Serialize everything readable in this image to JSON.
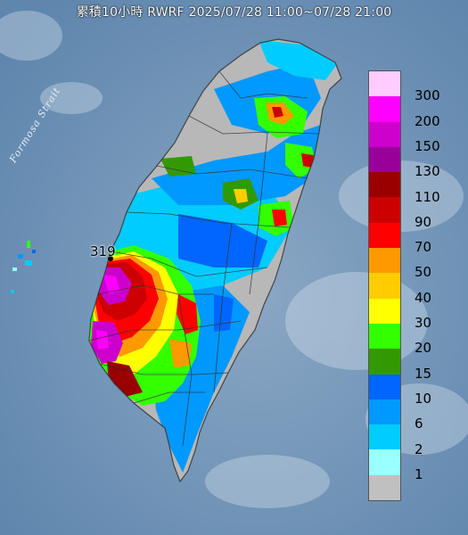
{
  "title": "累積10小時 RWRF 2025/07/28 11:00~07/28 21:00",
  "map_labels": {
    "strait": "Formosa Strait",
    "max_value": "319"
  },
  "legend": {
    "levels": [
      {
        "label": "300",
        "color": "#ffccff"
      },
      {
        "label": "200",
        "color": "#ff00ff"
      },
      {
        "label": "150",
        "color": "#cc00cc"
      },
      {
        "label": "130",
        "color": "#990099"
      },
      {
        "label": "110",
        "color": "#990000"
      },
      {
        "label": "90",
        "color": "#cc0000"
      },
      {
        "label": "70",
        "color": "#ff0000"
      },
      {
        "label": "50",
        "color": "#ff9900"
      },
      {
        "label": "40",
        "color": "#ffcc00"
      },
      {
        "label": "30",
        "color": "#ffff00"
      },
      {
        "label": "20",
        "color": "#33ff00"
      },
      {
        "label": "15",
        "color": "#339900"
      },
      {
        "label": "10",
        "color": "#0066ff"
      },
      {
        "label": "6",
        "color": "#0099ff"
      },
      {
        "label": "2",
        "color": "#00ccff"
      },
      {
        "label": "1",
        "color": "#99ffff"
      },
      {
        "label": "",
        "color": "#c0c0c0"
      }
    ]
  },
  "colors": {
    "sea": "#6f93b5",
    "land_no_rain": "#b8b8b8",
    "county_border": "#333333"
  }
}
